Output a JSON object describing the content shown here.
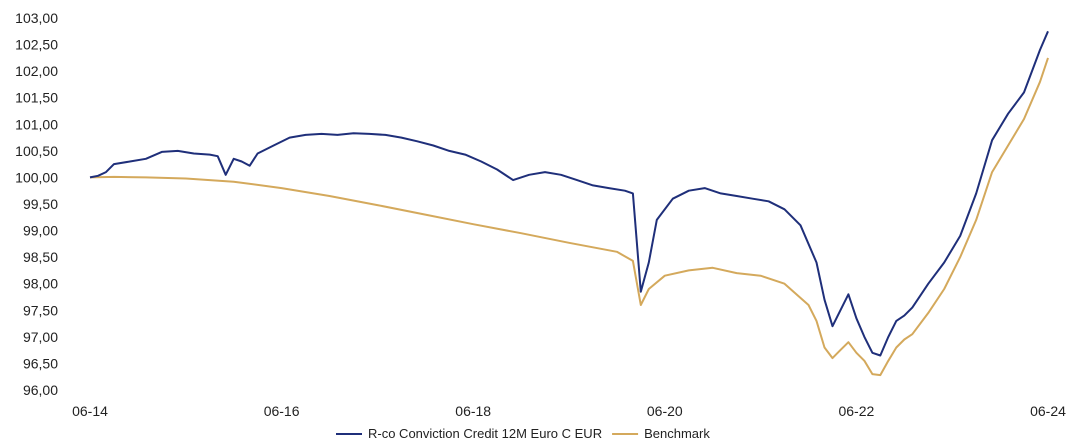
{
  "chart_data": {
    "type": "line",
    "title": "",
    "xlabel": "",
    "ylabel": "",
    "ylim": [
      96.0,
      103.0
    ],
    "y_ticks": [
      "96,00",
      "96,50",
      "97,00",
      "97,50",
      "98,00",
      "98,50",
      "99,00",
      "99,50",
      "100,00",
      "100,50",
      "101,00",
      "101,50",
      "102,00",
      "102,50",
      "103,00"
    ],
    "x_ticks": [
      "06-14",
      "06-16",
      "06-18",
      "06-20",
      "06-22",
      "06-24"
    ],
    "x_range": [
      "2014-06",
      "2024-06"
    ],
    "grid": false,
    "legend_position": "bottom",
    "series": [
      {
        "name": "R-co Conviction Credit 12M Euro C EUR",
        "color": "#1f2f7a",
        "points": [
          [
            "2014-06",
            100.0
          ],
          [
            "2014-07",
            100.03
          ],
          [
            "2014-08",
            100.1
          ],
          [
            "2014-09",
            100.25
          ],
          [
            "2014-11",
            100.3
          ],
          [
            "2015-01",
            100.35
          ],
          [
            "2015-03",
            100.48
          ],
          [
            "2015-05",
            100.5
          ],
          [
            "2015-07",
            100.45
          ],
          [
            "2015-09",
            100.43
          ],
          [
            "2015-10",
            100.4
          ],
          [
            "2015-11",
            100.05
          ],
          [
            "2015-12",
            100.35
          ],
          [
            "2016-01",
            100.3
          ],
          [
            "2016-02",
            100.22
          ],
          [
            "2016-03",
            100.45
          ],
          [
            "2016-05",
            100.6
          ],
          [
            "2016-07",
            100.75
          ],
          [
            "2016-09",
            100.8
          ],
          [
            "2016-11",
            100.82
          ],
          [
            "2017-01",
            100.8
          ],
          [
            "2017-03",
            100.83
          ],
          [
            "2017-05",
            100.82
          ],
          [
            "2017-07",
            100.8
          ],
          [
            "2017-09",
            100.75
          ],
          [
            "2017-11",
            100.68
          ],
          [
            "2018-01",
            100.6
          ],
          [
            "2018-03",
            100.5
          ],
          [
            "2018-05",
            100.43
          ],
          [
            "2018-07",
            100.3
          ],
          [
            "2018-09",
            100.15
          ],
          [
            "2018-11",
            99.95
          ],
          [
            "2019-01",
            100.05
          ],
          [
            "2019-03",
            100.1
          ],
          [
            "2019-05",
            100.05
          ],
          [
            "2019-07",
            99.95
          ],
          [
            "2019-09",
            99.85
          ],
          [
            "2019-11",
            99.8
          ],
          [
            "2020-01",
            99.75
          ],
          [
            "2020-02",
            99.7
          ],
          [
            "2020-03",
            97.85
          ],
          [
            "2020-04",
            98.4
          ],
          [
            "2020-05",
            99.2
          ],
          [
            "2020-07",
            99.6
          ],
          [
            "2020-09",
            99.75
          ],
          [
            "2020-11",
            99.8
          ],
          [
            "2021-01",
            99.7
          ],
          [
            "2021-03",
            99.65
          ],
          [
            "2021-05",
            99.6
          ],
          [
            "2021-07",
            99.55
          ],
          [
            "2021-09",
            99.4
          ],
          [
            "2021-11",
            99.1
          ],
          [
            "2022-01",
            98.4
          ],
          [
            "2022-02",
            97.7
          ],
          [
            "2022-03",
            97.2
          ],
          [
            "2022-04",
            97.5
          ],
          [
            "2022-05",
            97.8
          ],
          [
            "2022-06",
            97.35
          ],
          [
            "2022-07",
            97.0
          ],
          [
            "2022-08",
            96.7
          ],
          [
            "2022-09",
            96.65
          ],
          [
            "2022-10",
            97.0
          ],
          [
            "2022-11",
            97.3
          ],
          [
            "2022-12",
            97.4
          ],
          [
            "2023-01",
            97.55
          ],
          [
            "2023-03",
            98.0
          ],
          [
            "2023-05",
            98.4
          ],
          [
            "2023-07",
            98.9
          ],
          [
            "2023-09",
            99.7
          ],
          [
            "2023-11",
            100.7
          ],
          [
            "2024-01",
            101.2
          ],
          [
            "2024-03",
            101.6
          ],
          [
            "2024-05",
            102.4
          ],
          [
            "2024-06",
            102.75
          ]
        ]
      },
      {
        "name": "Benchmark",
        "color": "#d4a95c",
        "points": [
          [
            "2014-06",
            100.0
          ],
          [
            "2014-09",
            100.01
          ],
          [
            "2015-01",
            100.0
          ],
          [
            "2015-06",
            99.98
          ],
          [
            "2015-12",
            99.92
          ],
          [
            "2016-06",
            99.8
          ],
          [
            "2016-12",
            99.65
          ],
          [
            "2017-06",
            99.48
          ],
          [
            "2017-12",
            99.3
          ],
          [
            "2018-06",
            99.12
          ],
          [
            "2018-12",
            98.95
          ],
          [
            "2019-06",
            98.77
          ],
          [
            "2019-12",
            98.6
          ],
          [
            "2020-02",
            98.43
          ],
          [
            "2020-03",
            97.6
          ],
          [
            "2020-04",
            97.9
          ],
          [
            "2020-06",
            98.15
          ],
          [
            "2020-09",
            98.25
          ],
          [
            "2020-12",
            98.3
          ],
          [
            "2021-03",
            98.2
          ],
          [
            "2021-06",
            98.15
          ],
          [
            "2021-09",
            98.0
          ],
          [
            "2021-12",
            97.6
          ],
          [
            "2022-01",
            97.3
          ],
          [
            "2022-02",
            96.8
          ],
          [
            "2022-03",
            96.6
          ],
          [
            "2022-04",
            96.75
          ],
          [
            "2022-05",
            96.9
          ],
          [
            "2022-06",
            96.7
          ],
          [
            "2022-07",
            96.55
          ],
          [
            "2022-08",
            96.3
          ],
          [
            "2022-09",
            96.28
          ],
          [
            "2022-10",
            96.55
          ],
          [
            "2022-11",
            96.8
          ],
          [
            "2022-12",
            96.95
          ],
          [
            "2023-01",
            97.05
          ],
          [
            "2023-03",
            97.45
          ],
          [
            "2023-05",
            97.9
          ],
          [
            "2023-07",
            98.5
          ],
          [
            "2023-09",
            99.2
          ],
          [
            "2023-11",
            100.1
          ],
          [
            "2024-01",
            100.6
          ],
          [
            "2024-03",
            101.1
          ],
          [
            "2024-05",
            101.8
          ],
          [
            "2024-06",
            102.25
          ]
        ]
      }
    ]
  }
}
